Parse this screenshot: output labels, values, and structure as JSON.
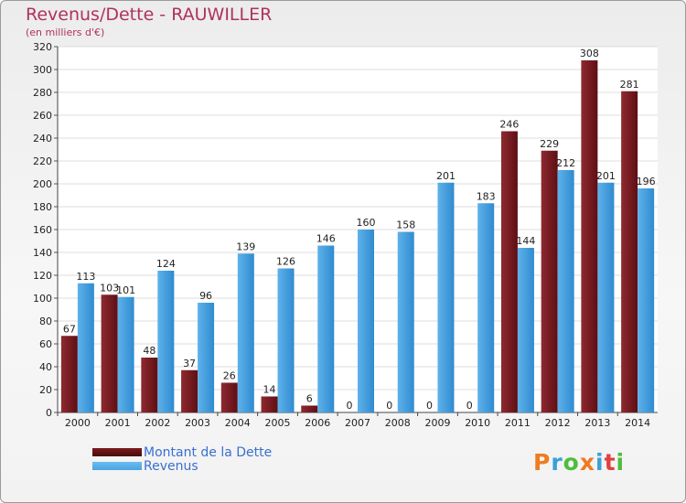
{
  "colors": {
    "dette": "#7a1a1f",
    "revenus": "#4aa3e2",
    "title": "#b0325a",
    "legend_text": "#3a6fd0"
  },
  "logo": {
    "text": "Proxiti",
    "colors": [
      "#f07a1f",
      "#3aa0d8",
      "#4fbd3b",
      "#f07a1f",
      "#3aa0d8",
      "#e04040",
      "#4fbd3b"
    ]
  },
  "chart_data": {
    "type": "bar",
    "title": "Revenus/Dette - RAUWILLER",
    "subtitle": "(en milliers d'€)",
    "categories": [
      "2000",
      "2001",
      "2002",
      "2003",
      "2004",
      "2005",
      "2006",
      "2007",
      "2008",
      "2009",
      "2010",
      "2011",
      "2012",
      "2013",
      "2014"
    ],
    "series": [
      {
        "name": "Montant de la Dette",
        "values": [
          67,
          103,
          48,
          37,
          26,
          14,
          6,
          0,
          0,
          0,
          0,
          246,
          229,
          308,
          281
        ]
      },
      {
        "name": "Revenus",
        "values": [
          113,
          101,
          124,
          96,
          139,
          126,
          146,
          160,
          158,
          201,
          183,
          144,
          212,
          201,
          196
        ]
      }
    ],
    "ylim": [
      0,
      320
    ],
    "yticks": [
      0,
      20,
      40,
      60,
      80,
      100,
      120,
      140,
      160,
      180,
      200,
      220,
      240,
      260,
      280,
      300,
      320
    ],
    "grid": true,
    "legend": "bottom-left"
  }
}
